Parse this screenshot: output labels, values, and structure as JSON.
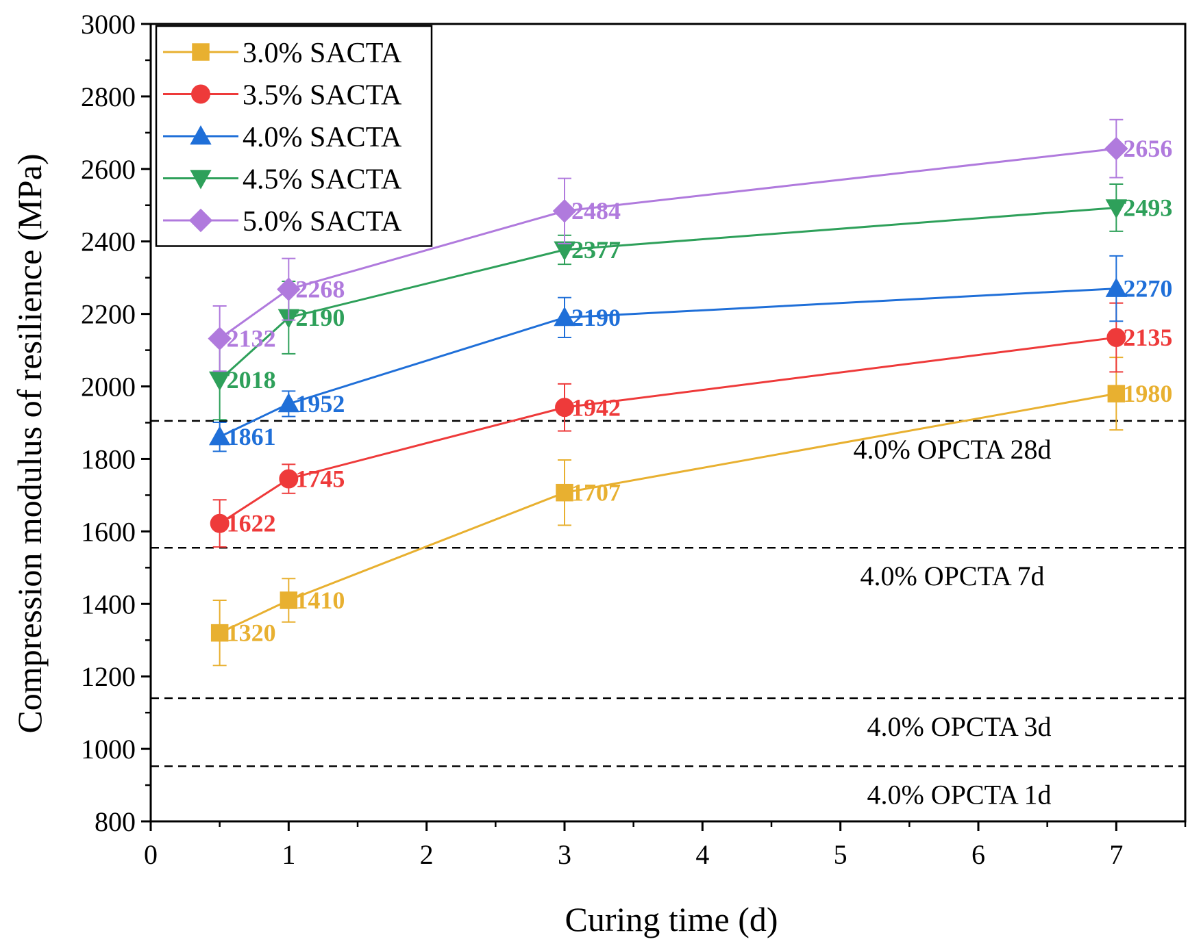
{
  "chart_data": {
    "type": "line",
    "title": "",
    "xlabel": "Curing time (d)",
    "ylabel": "Compression modulus of resilience (MPa)",
    "xlim": [
      0,
      7.5
    ],
    "ylim": [
      800,
      3000
    ],
    "xticks": [
      0,
      1,
      2,
      3,
      4,
      5,
      6,
      7
    ],
    "yticks": [
      800,
      1000,
      1200,
      1400,
      1600,
      1800,
      2000,
      2200,
      2400,
      2600,
      2800,
      3000
    ],
    "legend_position": "top-left",
    "x": [
      0.5,
      1,
      3,
      7
    ],
    "series": [
      {
        "name": "3.0% SACTA",
        "color": "#E8B030",
        "marker": "square",
        "values": [
          1320,
          1410,
          1707,
          1980
        ],
        "labels": [
          "1320",
          "1410",
          "1707",
          "1980"
        ],
        "errors": [
          90,
          60,
          90,
          100
        ]
      },
      {
        "name": "3.5% SACTA",
        "color": "#EE3A3A",
        "marker": "circle",
        "values": [
          1622,
          1745,
          1942,
          2135
        ],
        "labels": [
          "1622",
          "1745",
          "1942",
          "2135"
        ],
        "errors": [
          65,
          40,
          65,
          95
        ]
      },
      {
        "name": "4.0% SACTA",
        "color": "#1F6FD8",
        "marker": "triangle-up",
        "values": [
          1861,
          1952,
          2190,
          2270
        ],
        "labels": [
          "1861",
          "1952",
          "2190",
          "2270"
        ],
        "errors": [
          40,
          35,
          55,
          90
        ]
      },
      {
        "name": "4.5% SACTA",
        "color": "#2EA05A",
        "marker": "triangle-down",
        "values": [
          2018,
          2190,
          2377,
          2493
        ],
        "labels": [
          "2018",
          "2190",
          "2377",
          "2493"
        ],
        "errors": [
          110,
          100,
          40,
          65
        ]
      },
      {
        "name": "5.0% SACTA",
        "color": "#B07ADD",
        "marker": "diamond",
        "values": [
          2132,
          2268,
          2484,
          2656
        ],
        "labels": [
          "2132",
          "2268",
          "2484",
          "2656"
        ],
        "errors": [
          90,
          85,
          90,
          80
        ]
      }
    ],
    "reference_lines": [
      {
        "value": 1905,
        "label": "4.0% OPCTA 28d"
      },
      {
        "value": 1555,
        "label": "4.0% OPCTA 7d"
      },
      {
        "value": 1140,
        "label": "4.0% OPCTA 3d"
      },
      {
        "value": 952,
        "label": "4.0% OPCTA 1d"
      }
    ]
  }
}
